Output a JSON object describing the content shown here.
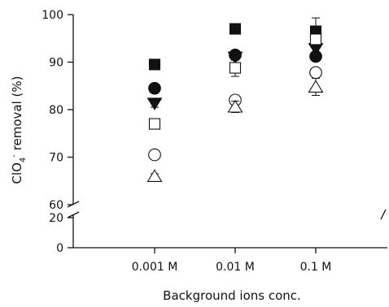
{
  "chart_data": {
    "type": "scatter",
    "title": "",
    "xlabel": "Background ions conc.",
    "ylabel": {
      "prefix": "ClO",
      "subscript": "4",
      "superscript": "-",
      "suffix": " removal (%)"
    },
    "categories": [
      "0.001 M",
      "0.01 M",
      "0.1 M"
    ],
    "y_axis": {
      "broken": true,
      "lower_segment": {
        "range": [
          0,
          20
        ],
        "ticks": [
          0,
          20
        ]
      },
      "upper_segment": {
        "range": [
          60,
          100
        ],
        "ticks": [
          60,
          70,
          80,
          90,
          100
        ]
      }
    },
    "grid": false,
    "legend": "none",
    "series": [
      {
        "marker": "square",
        "filled": true,
        "values": [
          89.5,
          97.0,
          96.5
        ],
        "errors": [
          0.4,
          0.5,
          0.6
        ]
      },
      {
        "marker": "circle",
        "filled": true,
        "values": [
          84.5,
          91.5,
          91.2
        ],
        "errors": [
          0.5,
          0.7,
          0.5
        ]
      },
      {
        "marker": "triangle-down",
        "filled": true,
        "values": [
          81.3,
          91.0,
          92.8
        ],
        "errors": [
          0.8,
          0.6,
          0.9
        ]
      },
      {
        "marker": "square",
        "filled": false,
        "values": [
          77.0,
          88.8,
          94.8
        ],
        "errors": [
          1.0,
          1.8,
          4.5
        ]
      },
      {
        "marker": "circle",
        "filled": false,
        "values": [
          70.5,
          82.0,
          87.8
        ],
        "errors": [
          0.5,
          0.6,
          0.5
        ]
      },
      {
        "marker": "triangle-up",
        "filled": false,
        "values": [
          66.0,
          80.6,
          84.8
        ],
        "errors": [
          0.5,
          1.2,
          1.8
        ]
      }
    ]
  }
}
